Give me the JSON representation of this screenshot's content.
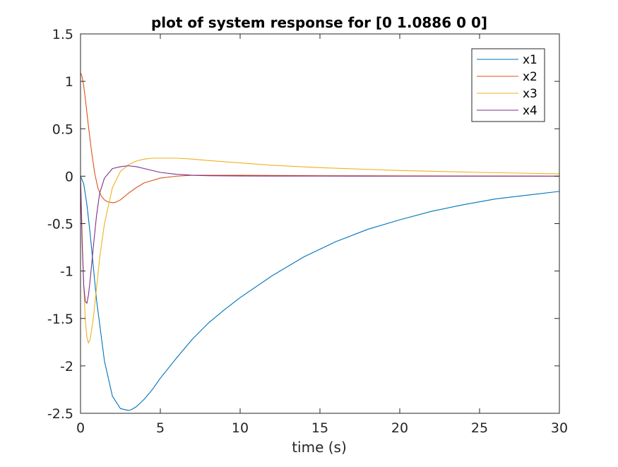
{
  "chart_data": {
    "type": "line",
    "title": "plot of system response for [0 1.0886 0 0]",
    "xlabel": "time (s)",
    "ylabel": "",
    "xlim": [
      0,
      30
    ],
    "ylim": [
      -2.5,
      1.5
    ],
    "xticks": [
      0,
      5,
      10,
      15,
      20,
      25,
      30
    ],
    "xtick_labels": [
      "0",
      "5",
      "10",
      "15",
      "20",
      "25",
      "30"
    ],
    "yticks": [
      1.5,
      1,
      0.5,
      0,
      -0.5,
      -1,
      -1.5,
      -2,
      -2.5
    ],
    "ytick_labels": [
      "1.5",
      "1",
      "0.5",
      "0",
      "-0.5",
      "-1",
      "-1.5",
      "-2",
      "-2.5"
    ],
    "grid": false,
    "legend_position": "top-right",
    "series": [
      {
        "name": "x1",
        "color": "#0072BD",
        "x": [
          0,
          0.2,
          0.4,
          0.6,
          0.8,
          1.0,
          1.5,
          2.0,
          2.5,
          3.0,
          3.2,
          3.5,
          4.0,
          4.5,
          5,
          6,
          7,
          8,
          9,
          10,
          12,
          14,
          16,
          18,
          20,
          22,
          24,
          26,
          28,
          30
        ],
        "y": [
          0,
          -0.08,
          -0.3,
          -0.6,
          -0.95,
          -1.3,
          -1.95,
          -2.32,
          -2.45,
          -2.47,
          -2.46,
          -2.43,
          -2.35,
          -2.25,
          -2.13,
          -1.92,
          -1.72,
          -1.55,
          -1.41,
          -1.28,
          -1.05,
          -0.85,
          -0.69,
          -0.56,
          -0.46,
          -0.37,
          -0.3,
          -0.24,
          -0.2,
          -0.16
        ]
      },
      {
        "name": "x2",
        "color": "#D95319",
        "x": [
          0,
          0.1,
          0.2,
          0.3,
          0.4,
          0.5,
          0.7,
          0.9,
          1.1,
          1.3,
          1.5,
          1.7,
          2.0,
          2.2,
          2.5,
          3.0,
          3.5,
          4.0,
          5.0,
          6.0,
          7.0,
          8.0,
          10,
          15,
          20,
          30
        ],
        "y": [
          1.0886,
          1.05,
          0.95,
          0.82,
          0.67,
          0.52,
          0.25,
          0.02,
          -0.13,
          -0.21,
          -0.25,
          -0.27,
          -0.28,
          -0.275,
          -0.25,
          -0.18,
          -0.12,
          -0.07,
          -0.02,
          0.0,
          0.01,
          0.01,
          0.01,
          0.005,
          0.003,
          0.001
        ]
      },
      {
        "name": "x3",
        "color": "#EDB120",
        "x": [
          0,
          0.1,
          0.2,
          0.3,
          0.4,
          0.5,
          0.6,
          0.8,
          1.0,
          1.2,
          1.5,
          2.0,
          2.5,
          3.0,
          3.5,
          4.0,
          4.5,
          5.0,
          6.0,
          7.0,
          8.0,
          10,
          12,
          15,
          20,
          25,
          30
        ],
        "y": [
          0,
          -0.6,
          -1.15,
          -1.52,
          -1.7,
          -1.76,
          -1.72,
          -1.5,
          -1.18,
          -0.86,
          -0.5,
          -0.12,
          0.05,
          0.12,
          0.16,
          0.18,
          0.19,
          0.19,
          0.19,
          0.18,
          0.165,
          0.14,
          0.115,
          0.09,
          0.06,
          0.04,
          0.025
        ]
      },
      {
        "name": "x4",
        "color": "#7E2F8E",
        "x": [
          0,
          0.1,
          0.2,
          0.3,
          0.4,
          0.5,
          0.6,
          0.8,
          1.0,
          1.2,
          1.5,
          2.0,
          2.5,
          3.0,
          3.5,
          4.0,
          5.0,
          6.0,
          7.0,
          8.0,
          10,
          15,
          20,
          30
        ],
        "y": [
          0,
          -0.7,
          -1.15,
          -1.32,
          -1.34,
          -1.25,
          -1.1,
          -0.75,
          -0.42,
          -0.18,
          -0.02,
          0.08,
          0.1,
          0.11,
          0.1,
          0.08,
          0.04,
          0.02,
          0.01,
          0.005,
          0.002,
          0.001,
          0.0,
          0.0
        ]
      }
    ]
  }
}
